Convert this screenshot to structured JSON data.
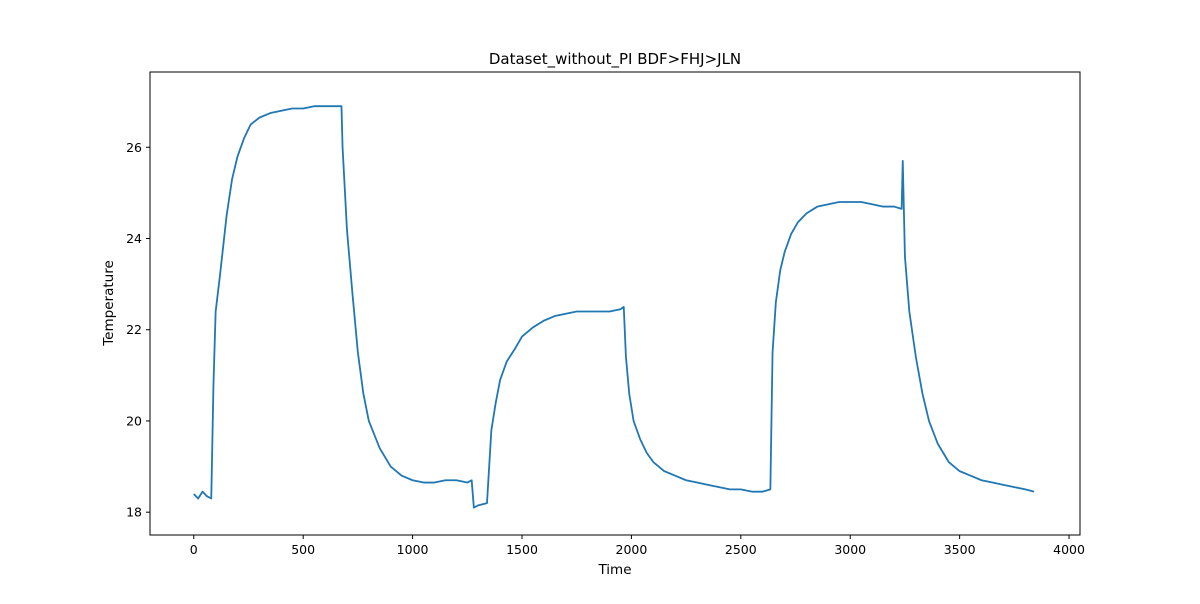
{
  "chart_data": {
    "type": "line",
    "title": "Dataset_without_PI BDF>FHJ>JLN",
    "xlabel": "Time",
    "ylabel": "Temperature",
    "xlim": [
      -200,
      4050
    ],
    "ylim": [
      17.5,
      27.65
    ],
    "xticks": [
      0,
      500,
      1000,
      1500,
      2000,
      2500,
      3000,
      3500,
      4000
    ],
    "yticks": [
      18,
      20,
      22,
      24,
      26
    ],
    "grid": false,
    "line_color": "#1f77b4",
    "series": [
      {
        "x": [
          0,
          20,
          40,
          60,
          80,
          90,
          100,
          120,
          150,
          175,
          200,
          230,
          260,
          300,
          350,
          400,
          450,
          500,
          550,
          600,
          650,
          675,
          680,
          700,
          725,
          750,
          775,
          800,
          850,
          900,
          950,
          1000,
          1050,
          1100,
          1150,
          1200,
          1250,
          1270,
          1280,
          1300,
          1340,
          1360,
          1380,
          1400,
          1430,
          1470,
          1500,
          1550,
          1600,
          1650,
          1700,
          1750,
          1800,
          1850,
          1900,
          1950,
          1965,
          1975,
          1990,
          2010,
          2040,
          2070,
          2100,
          2150,
          2200,
          2250,
          2300,
          2350,
          2400,
          2450,
          2500,
          2550,
          2600,
          2635,
          2645,
          2660,
          2680,
          2700,
          2730,
          2760,
          2800,
          2850,
          2900,
          2950,
          3000,
          3050,
          3100,
          3150,
          3200,
          3235,
          3240,
          3250,
          3270,
          3300,
          3330,
          3360,
          3400,
          3450,
          3500,
          3550,
          3600,
          3650,
          3700,
          3750,
          3800,
          3840
        ],
        "y": [
          18.4,
          18.3,
          18.45,
          18.35,
          18.3,
          20.8,
          22.4,
          23.2,
          24.5,
          25.3,
          25.8,
          26.2,
          26.5,
          26.65,
          26.75,
          26.8,
          26.85,
          26.85,
          26.9,
          26.9,
          26.9,
          26.9,
          26.0,
          24.2,
          22.8,
          21.5,
          20.6,
          20.0,
          19.4,
          19.0,
          18.8,
          18.7,
          18.65,
          18.65,
          18.7,
          18.7,
          18.65,
          18.7,
          18.1,
          18.15,
          18.2,
          19.8,
          20.4,
          20.9,
          21.3,
          21.6,
          21.85,
          22.05,
          22.2,
          22.3,
          22.35,
          22.4,
          22.4,
          22.4,
          22.4,
          22.45,
          22.5,
          21.4,
          20.6,
          20.0,
          19.6,
          19.3,
          19.1,
          18.9,
          18.8,
          18.7,
          18.65,
          18.6,
          18.55,
          18.5,
          18.5,
          18.45,
          18.45,
          18.5,
          21.5,
          22.6,
          23.3,
          23.7,
          24.1,
          24.35,
          24.55,
          24.7,
          24.75,
          24.8,
          24.8,
          24.8,
          24.75,
          24.7,
          24.7,
          24.65,
          25.7,
          23.6,
          22.4,
          21.4,
          20.6,
          20.0,
          19.5,
          19.1,
          18.9,
          18.8,
          18.7,
          18.65,
          18.6,
          18.55,
          18.5,
          18.45
        ]
      }
    ]
  }
}
